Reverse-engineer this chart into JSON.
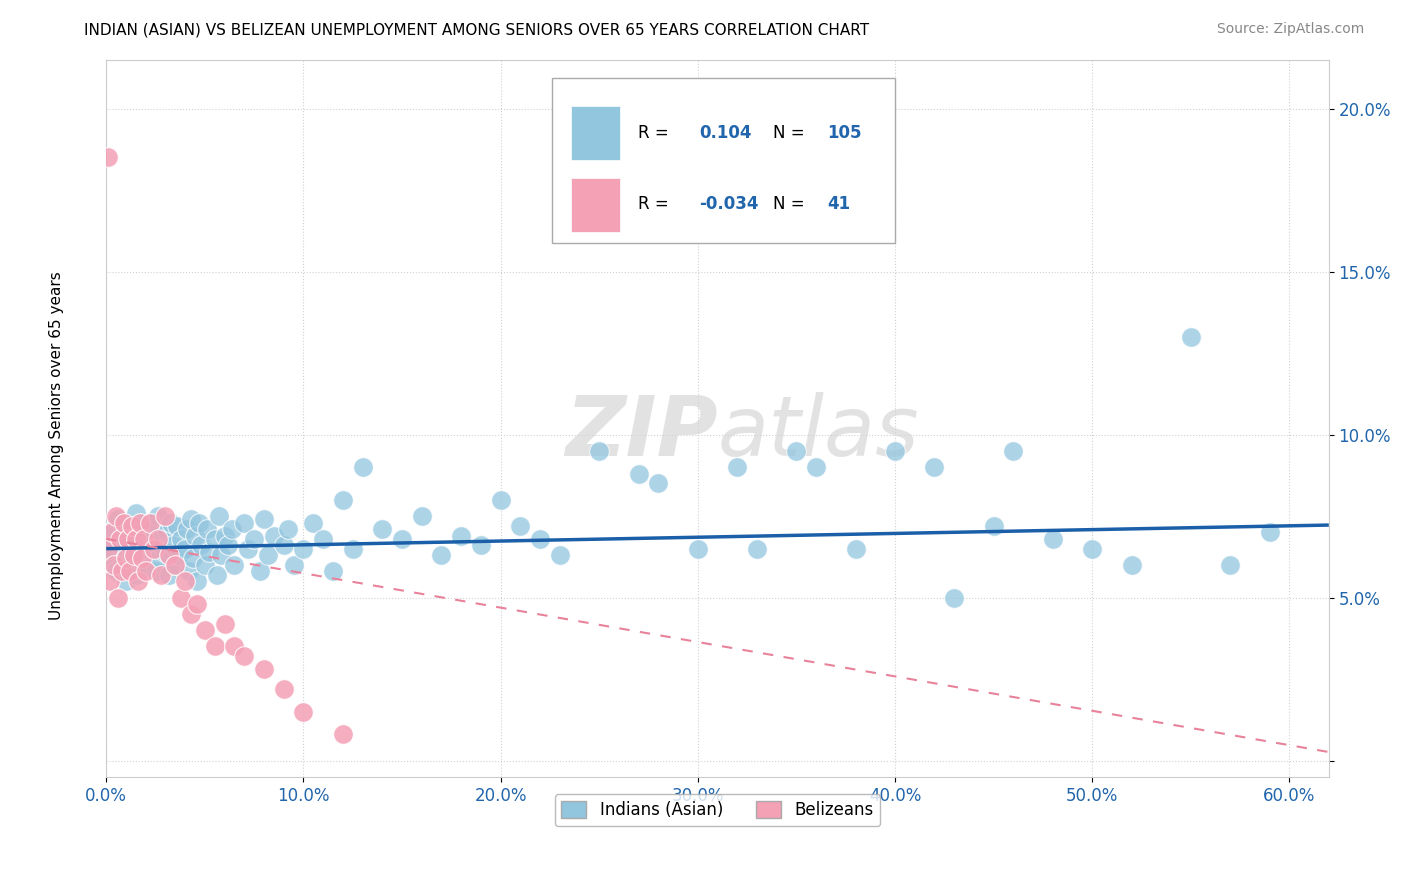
{
  "title": "INDIAN (ASIAN) VS BELIZEAN UNEMPLOYMENT AMONG SENIORS OVER 65 YEARS CORRELATION CHART",
  "source": "Source: ZipAtlas.com",
  "ylabel": "Unemployment Among Seniors over 65 years",
  "xlim": [
    0.0,
    0.62
  ],
  "ylim": [
    -0.005,
    0.215
  ],
  "xticks": [
    0.0,
    0.1,
    0.2,
    0.3,
    0.4,
    0.5,
    0.6
  ],
  "yticks": [
    0.0,
    0.05,
    0.1,
    0.15,
    0.2
  ],
  "ytick_labels": [
    "",
    "5.0%",
    "10.0%",
    "15.0%",
    "20.0%"
  ],
  "xtick_labels": [
    "0.0%",
    "10.0%",
    "20.0%",
    "30.0%",
    "40.0%",
    "50.0%",
    "60.0%"
  ],
  "blue_color": "#92c5de",
  "pink_color": "#f4a0b5",
  "blue_line_color": "#1a5fa8",
  "pink_line_color": "#e8829a",
  "watermark_color": "#d0d0d0",
  "R1": 0.104,
  "N1": 105,
  "R2": -0.034,
  "N2": 41,
  "indian_x": [
    0.001,
    0.002,
    0.003,
    0.004,
    0.005,
    0.006,
    0.007,
    0.008,
    0.009,
    0.01,
    0.01,
    0.012,
    0.013,
    0.014,
    0.015,
    0.015,
    0.016,
    0.017,
    0.018,
    0.019,
    0.02,
    0.021,
    0.022,
    0.023,
    0.024,
    0.025,
    0.026,
    0.027,
    0.028,
    0.03,
    0.031,
    0.032,
    0.033,
    0.034,
    0.035,
    0.036,
    0.037,
    0.038,
    0.04,
    0.041,
    0.042,
    0.043,
    0.044,
    0.045,
    0.046,
    0.047,
    0.048,
    0.05,
    0.051,
    0.052,
    0.055,
    0.056,
    0.057,
    0.058,
    0.06,
    0.062,
    0.064,
    0.065,
    0.07,
    0.072,
    0.075,
    0.078,
    0.08,
    0.082,
    0.085,
    0.09,
    0.092,
    0.095,
    0.1,
    0.105,
    0.11,
    0.115,
    0.12,
    0.125,
    0.13,
    0.14,
    0.15,
    0.16,
    0.17,
    0.18,
    0.19,
    0.2,
    0.21,
    0.22,
    0.23,
    0.25,
    0.27,
    0.3,
    0.32,
    0.35,
    0.38,
    0.4,
    0.42,
    0.45,
    0.48,
    0.5,
    0.52,
    0.55,
    0.57,
    0.59,
    0.28,
    0.33,
    0.36,
    0.43,
    0.46
  ],
  "indian_y": [
    0.065,
    0.068,
    0.062,
    0.071,
    0.058,
    0.074,
    0.066,
    0.06,
    0.073,
    0.067,
    0.055,
    0.069,
    0.063,
    0.072,
    0.057,
    0.076,
    0.064,
    0.07,
    0.061,
    0.068,
    0.066,
    0.059,
    0.073,
    0.065,
    0.071,
    0.058,
    0.075,
    0.062,
    0.068,
    0.064,
    0.07,
    0.057,
    0.073,
    0.066,
    0.06,
    0.072,
    0.063,
    0.068,
    0.065,
    0.071,
    0.058,
    0.074,
    0.062,
    0.069,
    0.055,
    0.073,
    0.066,
    0.06,
    0.071,
    0.064,
    0.068,
    0.057,
    0.075,
    0.063,
    0.069,
    0.066,
    0.071,
    0.06,
    0.073,
    0.065,
    0.068,
    0.058,
    0.074,
    0.063,
    0.069,
    0.066,
    0.071,
    0.06,
    0.065,
    0.073,
    0.068,
    0.058,
    0.08,
    0.065,
    0.09,
    0.071,
    0.068,
    0.075,
    0.063,
    0.069,
    0.066,
    0.08,
    0.072,
    0.068,
    0.063,
    0.095,
    0.088,
    0.065,
    0.09,
    0.095,
    0.065,
    0.095,
    0.09,
    0.072,
    0.068,
    0.065,
    0.06,
    0.13,
    0.06,
    0.07,
    0.085,
    0.065,
    0.09,
    0.05,
    0.095
  ],
  "belizean_x": [
    0.001,
    0.002,
    0.003,
    0.004,
    0.005,
    0.006,
    0.007,
    0.008,
    0.009,
    0.01,
    0.011,
    0.012,
    0.013,
    0.014,
    0.015,
    0.016,
    0.017,
    0.018,
    0.019,
    0.02,
    0.022,
    0.024,
    0.026,
    0.028,
    0.03,
    0.032,
    0.035,
    0.038,
    0.04,
    0.043,
    0.046,
    0.05,
    0.055,
    0.06,
    0.065,
    0.07,
    0.08,
    0.09,
    0.1,
    0.12,
    0.001
  ],
  "belizean_y": [
    0.065,
    0.055,
    0.07,
    0.06,
    0.075,
    0.05,
    0.068,
    0.058,
    0.073,
    0.062,
    0.068,
    0.058,
    0.072,
    0.063,
    0.068,
    0.055,
    0.073,
    0.062,
    0.068,
    0.058,
    0.073,
    0.065,
    0.068,
    0.057,
    0.075,
    0.063,
    0.06,
    0.05,
    0.055,
    0.045,
    0.048,
    0.04,
    0.035,
    0.042,
    0.035,
    0.032,
    0.028,
    0.022,
    0.015,
    0.008,
    0.185
  ]
}
